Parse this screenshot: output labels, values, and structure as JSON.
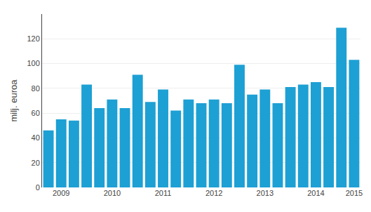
{
  "chart_data": {
    "type": "bar",
    "ylabel": "milj. euroa",
    "categories": [
      null,
      "2009",
      null,
      null,
      null,
      "2010",
      null,
      null,
      null,
      "2011",
      null,
      null,
      null,
      "2012",
      null,
      null,
      null,
      "2013",
      null,
      null,
      null,
      "2014",
      null,
      null,
      "2015"
    ],
    "values": [
      46,
      55,
      54,
      83,
      64,
      71,
      64,
      91,
      69,
      79,
      62,
      71,
      68,
      71,
      68,
      99,
      75,
      79,
      68,
      81,
      83,
      85,
      81,
      129,
      103
    ],
    "color": "#1da0d4",
    "ylim": [
      0,
      140
    ],
    "yticks": [
      0,
      20,
      40,
      60,
      80,
      100,
      120
    ],
    "grid": true
  }
}
